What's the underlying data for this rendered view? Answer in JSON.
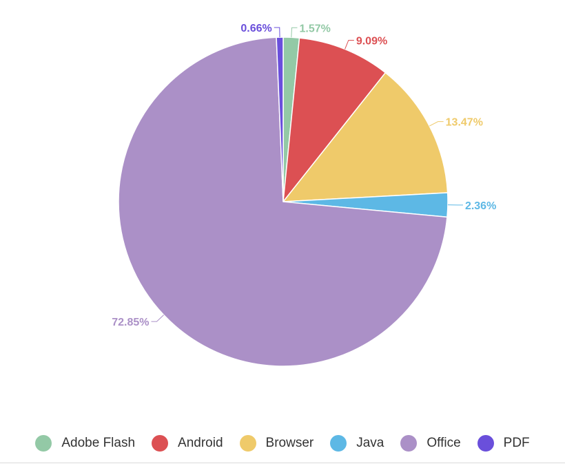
{
  "chart_data": {
    "type": "pie",
    "categories": [
      "Adobe Flash",
      "Android",
      "Browser",
      "Java",
      "Office",
      "PDF"
    ],
    "values": [
      1.57,
      9.09,
      13.47,
      2.36,
      72.85,
      0.66
    ],
    "labels": [
      "1.57%",
      "9.09%",
      "13.47%",
      "2.36%",
      "72.85%",
      "0.66%"
    ],
    "colors": [
      "#93c9a6",
      "#dc5053",
      "#efca6a",
      "#5db8e5",
      "#ab90c7",
      "#6a4fdb"
    ],
    "legend_position": "bottom",
    "start_angle_deg": 0,
    "direction": "clockwise"
  }
}
